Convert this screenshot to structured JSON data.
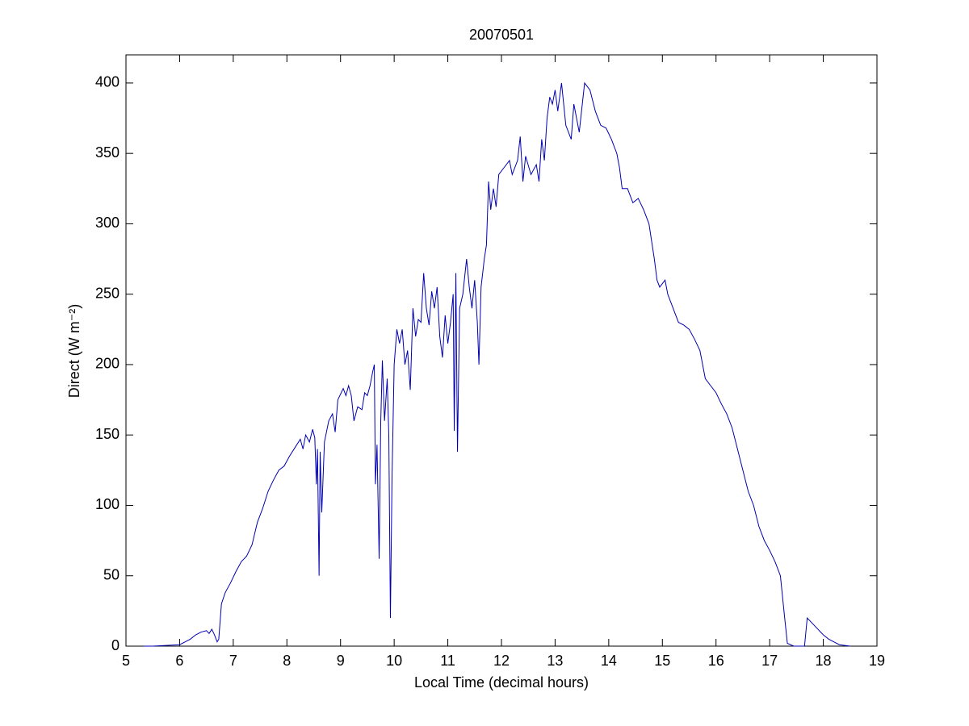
{
  "chart_data": {
    "type": "line",
    "title": "20070501",
    "xlabel": "Local Time (decimal hours)",
    "ylabel": "Direct (W m⁻²)",
    "xlim": [
      5,
      19
    ],
    "xticks": [
      5,
      6,
      7,
      8,
      9,
      10,
      11,
      12,
      13,
      14,
      15,
      16,
      17,
      18,
      19
    ],
    "ylim": [
      0,
      420
    ],
    "yticks": [
      0,
      50,
      100,
      150,
      200,
      250,
      300,
      350,
      400
    ],
    "series": [
      {
        "color": "#0000b0",
        "x": [
          5.33,
          5.5,
          6.0,
          6.1,
          6.2,
          6.3,
          6.4,
          6.5,
          6.55,
          6.6,
          6.65,
          6.7,
          6.73,
          6.78,
          6.85,
          6.95,
          7.05,
          7.15,
          7.25,
          7.35,
          7.45,
          7.55,
          7.65,
          7.75,
          7.85,
          7.95,
          8.05,
          8.15,
          8.25,
          8.3,
          8.35,
          8.42,
          8.48,
          8.52,
          8.55,
          8.57,
          8.6,
          8.62,
          8.65,
          8.7,
          8.78,
          8.85,
          8.9,
          8.95,
          9.05,
          9.1,
          9.15,
          9.2,
          9.25,
          9.32,
          9.4,
          9.45,
          9.5,
          9.55,
          9.6,
          9.63,
          9.65,
          9.68,
          9.72,
          9.75,
          9.78,
          9.82,
          9.87,
          9.9,
          9.93,
          9.96,
          10.0,
          10.05,
          10.1,
          10.15,
          10.2,
          10.25,
          10.3,
          10.35,
          10.4,
          10.45,
          10.5,
          10.55,
          10.6,
          10.65,
          10.7,
          10.75,
          10.8,
          10.85,
          10.9,
          10.95,
          11.0,
          11.05,
          11.1,
          11.12,
          11.15,
          11.18,
          11.22,
          11.28,
          11.35,
          11.4,
          11.45,
          11.5,
          11.55,
          11.58,
          11.62,
          11.68,
          11.72,
          11.76,
          11.8,
          11.85,
          11.9,
          11.95,
          12.05,
          12.15,
          12.2,
          12.3,
          12.35,
          12.4,
          12.45,
          12.55,
          12.65,
          12.7,
          12.75,
          12.8,
          12.85,
          12.9,
          12.95,
          13.0,
          13.05,
          13.12,
          13.2,
          13.3,
          13.35,
          13.45,
          13.55,
          13.65,
          13.75,
          13.85,
          13.95,
          14.05,
          14.15,
          14.2,
          14.25,
          14.35,
          14.45,
          14.55,
          14.65,
          14.75,
          14.85,
          14.9,
          14.95,
          15.05,
          15.1,
          15.2,
          15.3,
          15.4,
          15.5,
          15.6,
          15.7,
          15.8,
          15.9,
          16.0,
          16.1,
          16.2,
          16.3,
          16.4,
          16.5,
          16.6,
          16.7,
          16.8,
          16.9,
          17.0,
          17.1,
          17.2,
          17.28,
          17.33,
          17.45,
          17.65,
          17.7,
          17.8,
          17.9,
          18.0,
          18.1,
          18.2,
          18.3,
          18.5
        ],
        "values": [
          0,
          0,
          1,
          3,
          5,
          8,
          10,
          11,
          9,
          12,
          8,
          3,
          5,
          30,
          38,
          45,
          53,
          60,
          64,
          72,
          88,
          98,
          110,
          118,
          125,
          128,
          135,
          141,
          147,
          140,
          150,
          145,
          154,
          148,
          115,
          140,
          50,
          138,
          95,
          145,
          160,
          165,
          152,
          175,
          183,
          178,
          185,
          178,
          160,
          170,
          168,
          180,
          178,
          185,
          195,
          200,
          115,
          143,
          62,
          160,
          203,
          160,
          190,
          150,
          20,
          120,
          200,
          225,
          215,
          225,
          200,
          210,
          182,
          240,
          220,
          232,
          230,
          265,
          240,
          228,
          252,
          240,
          255,
          220,
          205,
          235,
          215,
          230,
          250,
          153,
          265,
          138,
          240,
          250,
          275,
          255,
          240,
          260,
          230,
          200,
          255,
          275,
          285,
          330,
          310,
          325,
          312,
          335,
          340,
          345,
          335,
          345,
          362,
          330,
          348,
          335,
          342,
          330,
          360,
          345,
          375,
          390,
          385,
          395,
          380,
          400,
          370,
          360,
          385,
          365,
          400,
          395,
          380,
          370,
          368,
          360,
          350,
          340,
          325,
          325,
          315,
          318,
          310,
          300,
          275,
          260,
          255,
          260,
          250,
          240,
          230,
          228,
          225,
          218,
          210,
          190,
          185,
          180,
          172,
          165,
          155,
          140,
          125,
          110,
          100,
          85,
          75,
          68,
          60,
          50,
          20,
          2,
          0,
          0,
          20,
          16,
          12,
          8,
          5,
          3,
          1,
          0
        ]
      }
    ]
  }
}
